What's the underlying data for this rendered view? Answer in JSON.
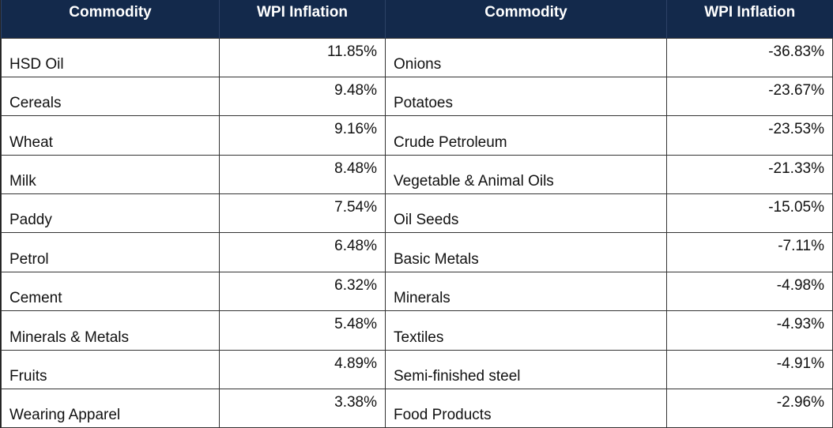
{
  "table": {
    "headers": [
      "Commodity",
      "WPI Inflation",
      "Commodity",
      "WPI Inflation"
    ],
    "rows": [
      [
        "HSD Oil",
        "11.85%",
        "Onions",
        "-36.83%"
      ],
      [
        "Cereals",
        "9.48%",
        "Potatoes",
        "-23.67%"
      ],
      [
        "Wheat",
        "9.16%",
        "Crude Petroleum",
        "-23.53%"
      ],
      [
        "Milk",
        "8.48%",
        "Vegetable & Animal Oils",
        "-21.33%"
      ],
      [
        "Paddy",
        "7.54%",
        "Oil Seeds",
        "-15.05%"
      ],
      [
        "Petrol",
        "6.48%",
        "Basic Metals",
        "-7.11%"
      ],
      [
        "Cement",
        "6.32%",
        "Minerals",
        "-4.98%"
      ],
      [
        "Minerals & Metals",
        "5.48%",
        "Textiles",
        "-4.93%"
      ],
      [
        "Fruits",
        "4.89%",
        "Semi-finished steel",
        "-4.91%"
      ],
      [
        "Wearing Apparel",
        "3.38%",
        "Food Products",
        "-2.96%"
      ]
    ]
  }
}
